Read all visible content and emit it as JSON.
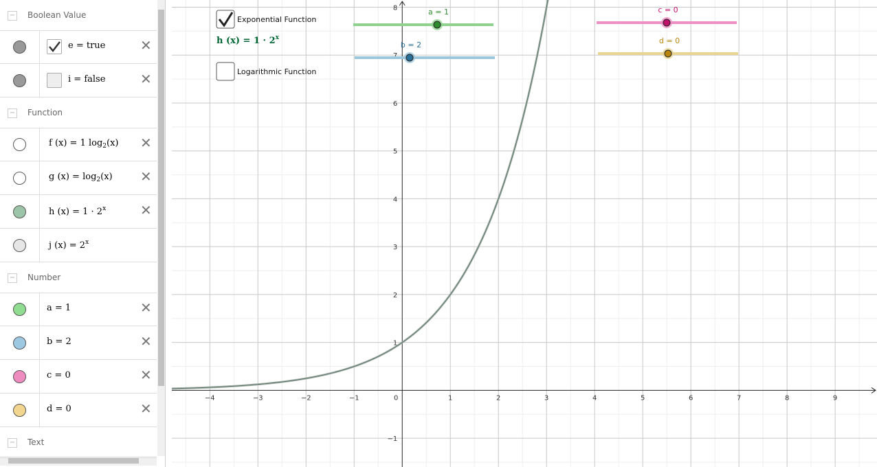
{
  "algebra": {
    "sections": [
      {
        "title": "Boolean Value",
        "items": [
          {
            "parts": [
              {
                "text": "e = true"
              }
            ],
            "color": "#999999",
            "checkbox": true,
            "checked": true
          },
          {
            "parts": [
              {
                "text": "i = false"
              }
            ],
            "color": "#999999",
            "checkbox": true,
            "checked": false
          }
        ]
      },
      {
        "title": "Function",
        "items": [
          {
            "parts": [
              {
                "text": "f (x) = 1 log"
              },
              {
                "text": "2",
                "pos": "sub"
              },
              {
                "text": "(x)"
              }
            ],
            "color": "#ffffff"
          },
          {
            "parts": [
              {
                "text": "g (x) = log"
              },
              {
                "text": "2",
                "pos": "sub"
              },
              {
                "text": "(x)"
              }
            ],
            "color": "#ffffff"
          },
          {
            "parts": [
              {
                "text": "h (x) = 1 · 2"
              },
              {
                "text": "x",
                "pos": "sup"
              }
            ],
            "color": "#9cc4a9"
          },
          {
            "parts": [
              {
                "text": "j (x) = 2"
              },
              {
                "text": "x",
                "pos": "sup"
              }
            ],
            "color": "#e6e6e6"
          }
        ]
      },
      {
        "title": "Number",
        "items": [
          {
            "parts": [
              {
                "text": "a = 1"
              }
            ],
            "color": "#90dc90"
          },
          {
            "parts": [
              {
                "text": "b = 2"
              }
            ],
            "color": "#9cc8e2"
          },
          {
            "parts": [
              {
                "text": "c = 0"
              }
            ],
            "color": "#ee8cbf"
          },
          {
            "parts": [
              {
                "text": "d = 0"
              }
            ],
            "color": "#f2d58e"
          }
        ]
      },
      {
        "title": "Text",
        "items": []
      }
    ]
  },
  "graphics": {
    "xlim": [
      -4.79,
      9.87
    ],
    "ylim": [
      -1.6,
      8.15
    ],
    "xticks": [
      {
        "value": -4,
        "label": "−4"
      },
      {
        "value": -3,
        "label": "−3"
      },
      {
        "value": -2,
        "label": "−2"
      },
      {
        "value": -1,
        "label": "−1"
      },
      0,
      1,
      2,
      3,
      4,
      5,
      6,
      7,
      8,
      9
    ],
    "yticks": [
      {
        "value": -1,
        "label": "−1"
      },
      1,
      2,
      3,
      4,
      5,
      6,
      7,
      8
    ],
    "checkboxes": [
      {
        "label": "Exponential Function",
        "checked": true
      },
      {
        "label": "Logarithmic Function",
        "checked": false
      }
    ],
    "formula": {
      "parts": [
        {
          "text": "h (x) = 1 · 2"
        },
        {
          "text": "x",
          "pos": "sup"
        }
      ],
      "color": "#006633"
    },
    "sliders": [
      {
        "label": "a = 1",
        "value": 1,
        "color": "#2e8b2e",
        "track": "#8fd28f"
      },
      {
        "label": "b = 2",
        "value": 2,
        "color": "#2a6f99",
        "track": "#9cc6dc"
      },
      {
        "label": "c = 0",
        "value": 0,
        "color": "#c0116b",
        "track": "#ee90c6"
      },
      {
        "label": "d = 0",
        "value": 0,
        "color": "#b8860b",
        "track": "#e9d592"
      }
    ]
  }
}
